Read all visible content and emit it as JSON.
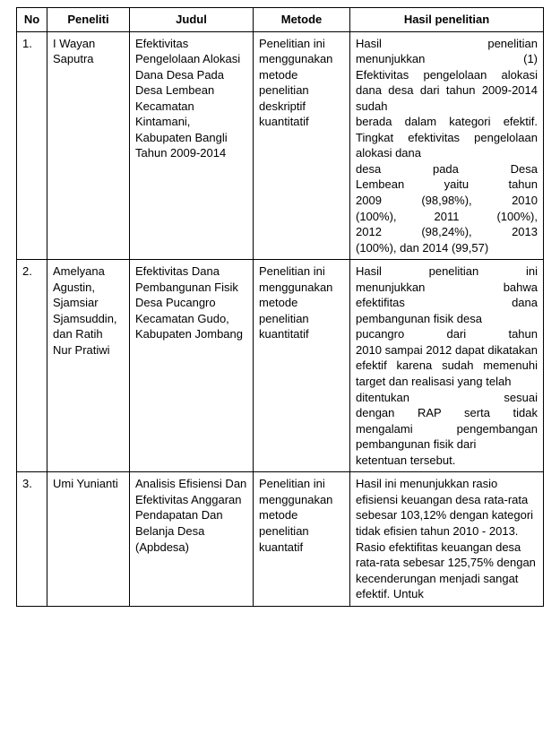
{
  "columns": {
    "no": "No",
    "peneliti": "Peneliti",
    "judul": "Judul",
    "metode": "Metode",
    "hasil": "Hasil penelitian"
  },
  "rows": [
    {
      "no": "1.",
      "peneliti": "I Wayan Saputra",
      "judul": "Efektivitas Pengelolaan Alokasi Dana Desa Pada Desa Lembean Kecamatan Kintamani, Kabupaten Bangli Tahun 2009-2014",
      "metode": "Penelitian ini menggunakan metode penelitian deskriptif kuantitatif",
      "hasil_j1": "Hasil penelitian",
      "hasil_j2": "menunjukkan (1)",
      "hasil_j3": "Efektivitas pengelolaan alokasi dana desa dari tahun 2009-2014 sudah",
      "hasil_j4": "berada dalam kategori efektif. Tingkat efektivitas pengelolaan alokasi dana",
      "hasil_j5": "desa pada Desa",
      "hasil_j6": "Lembean yaitu tahun",
      "hasil_j7": "2009 (98,98%), 2010",
      "hasil_j8": "(100%), 2011 (100%),",
      "hasil_j9": "2012 (98,24%), 2013",
      "hasil_tail": "(100%), dan 2014 (99,57)"
    },
    {
      "no": "2.",
      "peneliti": "Amelyana Agustin, Sjamsiar Sjamsuddin, dan Ratih Nur Pratiwi",
      "judul": "Efektivitas Dana Pembangunan Fisik\nDesa Pucangro Kecamatan Gudo, Kabupaten Jombang",
      "metode": "Penelitian ini menggunakan metode penelitian kuantitatif",
      "hasil_j1": "Hasil penelitian ini",
      "hasil_j2": "menunjukkan bahwa",
      "hasil_j3": "efektifitas dana",
      "hasil_j4": "pembangunan fisik desa",
      "hasil_j5": "pucangro dari tahun",
      "hasil_j6": "2010 sampai 2012 dapat dikatakan efektif karena sudah memenuhi target dan realisasi yang telah",
      "hasil_j7": "ditentukan sesuai",
      "hasil_j8": "dengan RAP serta tidak mengalami pengembangan pembangunan fisik dari",
      "hasil_tail": "ketentuan tersebut."
    },
    {
      "no": "3.",
      "peneliti": "Umi Yunianti",
      "judul": "Analisis Efisiensi Dan Efektivitas Anggaran Pendapatan Dan Belanja Desa (Apbdesa)",
      "metode": "Penelitian ini menggunakan metode penelitian kuantatif",
      "hasil": "Hasil ini menunjukkan rasio efisiensi keuangan desa rata-rata sebesar 103,12% dengan kategori tidak efisien tahun 2010 - 2013. Rasio efektifitas keuangan desa rata-rata sebesar 125,75% dengan kecenderungan menjadi sangat efektif. Untuk"
    }
  ]
}
